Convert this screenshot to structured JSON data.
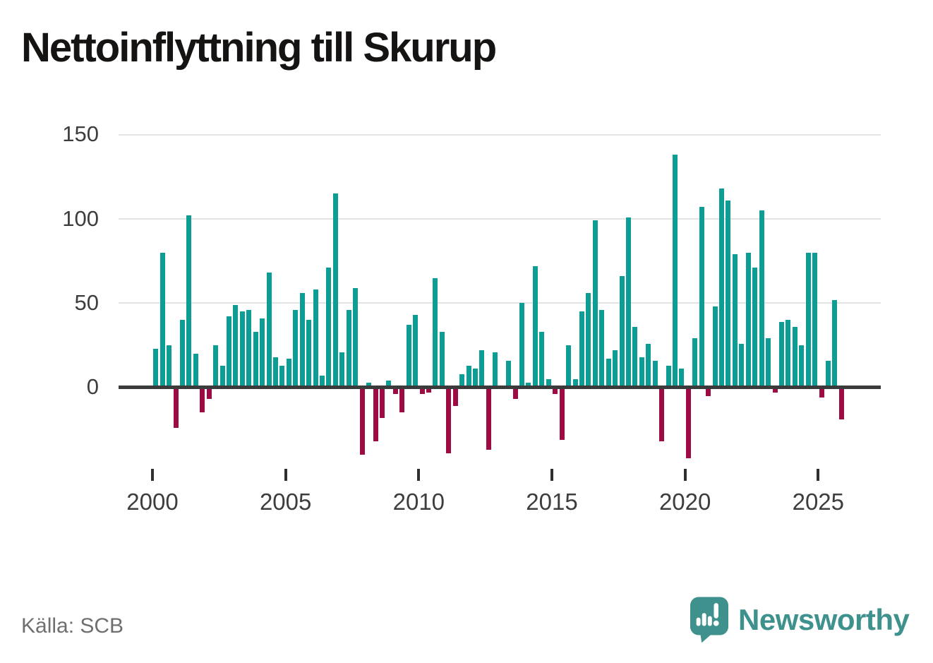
{
  "title": "Nettoinflyttning till Skurup",
  "source": "Källa: SCB",
  "brand": {
    "name": "Newsworthy",
    "color": "#3F918E"
  },
  "colors": {
    "positive_bar": "#0C9E95",
    "negative_bar": "#9E0B44",
    "axis": "#3b3b3b",
    "gridline": "#e3e3e3",
    "tick_label": "#3d3d3d",
    "source_text": "#6f6f6f"
  },
  "chart_data": {
    "type": "bar",
    "title": "Nettoinflyttning till Skurup",
    "xlabel": "",
    "ylabel": "",
    "period": "quarterly",
    "start": "2000-Q1",
    "end": "2025-Q4",
    "ylim": [
      -50,
      160
    ],
    "grid": "horizontal",
    "y_ticks": [
      150,
      100,
      50,
      0
    ],
    "x_ticks": [
      2000,
      2005,
      2010,
      2015,
      2020,
      2025
    ],
    "x_tick_labels": [
      "2000",
      "2005",
      "2010",
      "2015",
      "2020",
      "2025"
    ],
    "series": [
      {
        "name": "Nettoinflyttning",
        "years": [
          {
            "year": 2000,
            "values": [
              23,
              80,
              25,
              -24
            ]
          },
          {
            "year": 2001,
            "values": [
              40,
              102,
              20,
              -15
            ]
          },
          {
            "year": 2002,
            "values": [
              -7,
              25,
              13,
              42
            ]
          },
          {
            "year": 2003,
            "values": [
              49,
              45,
              46,
              33
            ]
          },
          {
            "year": 2004,
            "values": [
              41,
              68,
              18,
              13
            ]
          },
          {
            "year": 2005,
            "values": [
              17,
              46,
              56,
              40
            ]
          },
          {
            "year": 2006,
            "values": [
              58,
              7,
              71,
              115
            ]
          },
          {
            "year": 2007,
            "values": [
              21,
              46,
              59,
              -40
            ]
          },
          {
            "year": 2008,
            "values": [
              3,
              -32,
              -18,
              4
            ]
          },
          {
            "year": 2009,
            "values": [
              -4,
              -15,
              37,
              43
            ]
          },
          {
            "year": 2010,
            "values": [
              -4,
              -3,
              65,
              33
            ]
          },
          {
            "year": 2011,
            "values": [
              -39,
              -11,
              8,
              13
            ]
          },
          {
            "year": 2012,
            "values": [
              11,
              22,
              -37,
              21
            ]
          },
          {
            "year": 2013,
            "values": [
              0,
              16,
              -7,
              50
            ]
          },
          {
            "year": 2014,
            "values": [
              3,
              72,
              33,
              5
            ]
          },
          {
            "year": 2015,
            "values": [
              -4,
              -31,
              25,
              5
            ]
          },
          {
            "year": 2016,
            "values": [
              45,
              56,
              99,
              46
            ]
          },
          {
            "year": 2017,
            "values": [
              17,
              22,
              66,
              101
            ]
          },
          {
            "year": 2018,
            "values": [
              36,
              18,
              26,
              16
            ]
          },
          {
            "year": 2019,
            "values": [
              -32,
              13,
              138,
              11
            ]
          },
          {
            "year": 2020,
            "values": [
              -42,
              29,
              107,
              -5
            ]
          },
          {
            "year": 2021,
            "values": [
              48,
              118,
              111,
              79
            ]
          },
          {
            "year": 2022,
            "values": [
              26,
              80,
              71,
              105
            ]
          },
          {
            "year": 2023,
            "values": [
              29,
              -3,
              39,
              40
            ]
          },
          {
            "year": 2024,
            "values": [
              36,
              25,
              80,
              80
            ]
          },
          {
            "year": 2025,
            "values": [
              -6,
              16,
              52,
              -19
            ]
          }
        ]
      }
    ]
  }
}
